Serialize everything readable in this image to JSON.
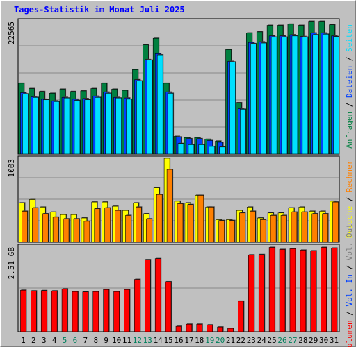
{
  "chart_data": {
    "type": "bar",
    "title": "Tages-Statistik im Monat Juli 2025",
    "categories": [
      "1",
      "2",
      "3",
      "4",
      "5",
      "6",
      "7",
      "8",
      "9",
      "10",
      "11",
      "12",
      "13",
      "14",
      "15",
      "16",
      "17",
      "18",
      "19",
      "20",
      "21",
      "22",
      "23",
      "24",
      "25",
      "26",
      "27",
      "28",
      "29",
      "30",
      "31"
    ],
    "weekend_days": [
      "5",
      "6",
      "12",
      "13",
      "19",
      "20",
      "26",
      "27"
    ],
    "colors": {
      "anfragen": "#008040",
      "dateien": "#0040ff",
      "seiten": "#00e0ff",
      "besuche": "#ffff00",
      "rechner": "#ff8000",
      "volumen": "#ff0000",
      "title": "#0000ff",
      "weekday_label": "#000000",
      "weekend_label": "#00805c"
    },
    "panels": [
      {
        "id": "hits",
        "y_label": "22565",
        "ylim": [
          0,
          22565
        ],
        "legend": [
          "Anfragen",
          "/",
          "Dateien",
          "/",
          "Seiten"
        ],
        "legend_colors": [
          "#008040",
          "#000000",
          "#0040ff",
          "#000000",
          "#00e0ff"
        ],
        "series": [
          {
            "name": "Anfragen",
            "values": [
              12000,
              11100,
              10600,
              10300,
              11000,
              10600,
              10700,
              11100,
              12000,
              11000,
              10800,
              14300,
              18500,
              19600,
              12000,
              3000,
              2800,
              2800,
              2500,
              2200,
              17700,
              8700,
              20500,
              20700,
              21800,
              21800,
              22000,
              21800,
              22500,
              22500,
              21900
            ]
          },
          {
            "name": "Dateien",
            "values": [
              10400,
              9700,
              9300,
              9000,
              9600,
              9300,
              9400,
              9800,
              10500,
              9600,
              9500,
              12600,
              16000,
              17000,
              10500,
              2900,
              2600,
              2600,
              2300,
              2000,
              15700,
              7700,
              18900,
              19000,
              20000,
              20000,
              20200,
              19900,
              20500,
              20500,
              20000
            ]
          },
          {
            "name": "Seiten",
            "values": [
              10200,
              9600,
              9200,
              8900,
              9500,
              9100,
              9200,
              9600,
              10300,
              9500,
              9300,
              12400,
              15900,
              16800,
              10300,
              1800,
              1600,
              1600,
              1300,
              1200,
              15600,
              7600,
              18700,
              18800,
              19800,
              19800,
              20000,
              19800,
              20200,
              20300,
              19900
            ]
          }
        ]
      },
      {
        "id": "visits",
        "y_label": "1003",
        "ylim": [
          0,
          1003
        ],
        "legend": [
          "Besuche",
          "/",
          "Rechner"
        ],
        "legend_colors": [
          "#ffff00",
          "#000000",
          "#ff8000"
        ],
        "series": [
          {
            "name": "Besuche",
            "values": [
              470,
              510,
              420,
              360,
              330,
              330,
              290,
              480,
              480,
              430,
              380,
              470,
              340,
              650,
              1003,
              490,
              470,
              560,
              420,
              270,
              270,
              380,
              420,
              290,
              350,
              350,
              410,
              420,
              370,
              370,
              490
            ]
          },
          {
            "name": "Rechner",
            "values": [
              370,
              410,
              340,
              300,
              280,
              280,
              250,
              400,
              410,
              380,
              320,
              420,
              280,
              570,
              870,
              460,
              450,
              560,
              420,
              260,
              260,
              350,
              370,
              270,
              320,
              320,
              360,
              360,
              340,
              340,
              480
            ]
          }
        ]
      },
      {
        "id": "volume",
        "y_label": "2.51 GB",
        "ylim": [
          0,
          2.51
        ],
        "legend": [
          "Volumen",
          "/",
          "Vol. In",
          "/",
          "Vol. Out"
        ],
        "legend_colors": [
          "#ff0000",
          "#000000",
          "#0040ff",
          "#000000",
          "#808080"
        ],
        "series": [
          {
            "name": "Volumen",
            "values": [
              1.22,
              1.2,
              1.21,
              1.2,
              1.26,
              1.18,
              1.17,
              1.18,
              1.24,
              1.18,
              1.24,
              1.54,
              2.12,
              2.15,
              1.47,
              0.16,
              0.22,
              0.22,
              0.2,
              0.14,
              0.1,
              0.9,
              2.26,
              2.27,
              2.48,
              2.42,
              2.44,
              2.4,
              2.38,
              2.48,
              2.46
            ]
          }
        ]
      }
    ]
  }
}
